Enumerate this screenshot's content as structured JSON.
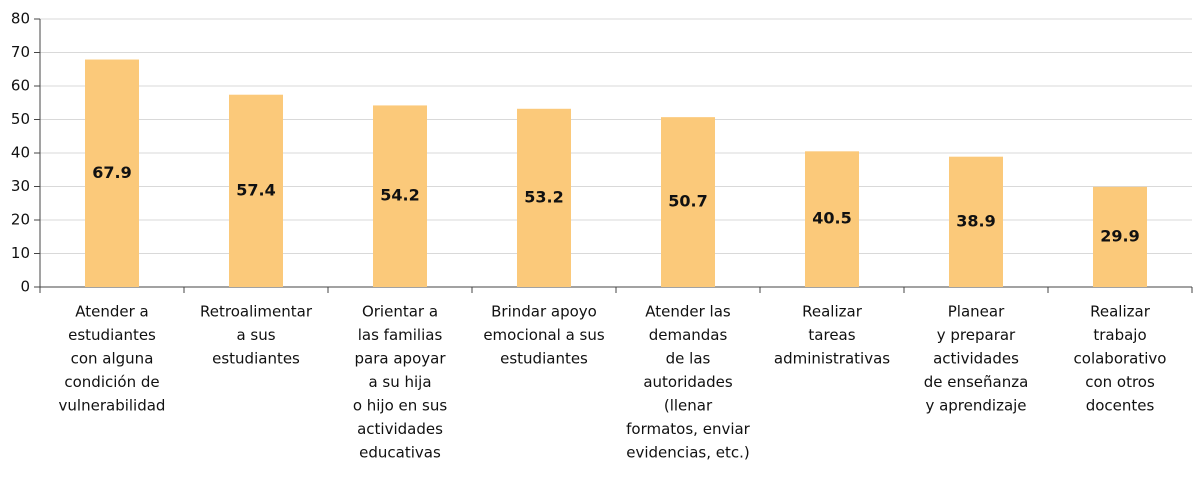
{
  "chart_data": {
    "type": "bar",
    "categories": [
      [
        "Atender a",
        "estudiantes",
        "con alguna",
        "condición de",
        "vulnerabilidad"
      ],
      [
        "Retroalimentar",
        "a sus",
        "estudiantes"
      ],
      [
        "Orientar a",
        "las familias",
        "para apoyar",
        "a su hija",
        "o hijo en sus",
        "actividades",
        "educativas"
      ],
      [
        "Brindar apoyo",
        "emocional a sus",
        "estudiantes"
      ],
      [
        "Atender las",
        "demandas",
        "de las",
        "autoridades",
        "(llenar",
        "formatos, enviar",
        "evidencias, etc.)"
      ],
      [
        "Realizar",
        "tareas",
        "administrativas"
      ],
      [
        "Planear",
        "y preparar",
        "actividades",
        "de enseñanza",
        "y aprendizaje"
      ],
      [
        "Realizar",
        "trabajo",
        "colaborativo",
        "con otros",
        "docentes"
      ]
    ],
    "values": [
      67.9,
      57.4,
      54.2,
      53.2,
      50.7,
      40.5,
      38.9,
      29.9
    ],
    "color": "#fbc97a",
    "ylim": [
      0,
      80
    ],
    "yticks": [
      0,
      10,
      20,
      30,
      40,
      50,
      60,
      70,
      80
    ],
    "grid": true
  }
}
